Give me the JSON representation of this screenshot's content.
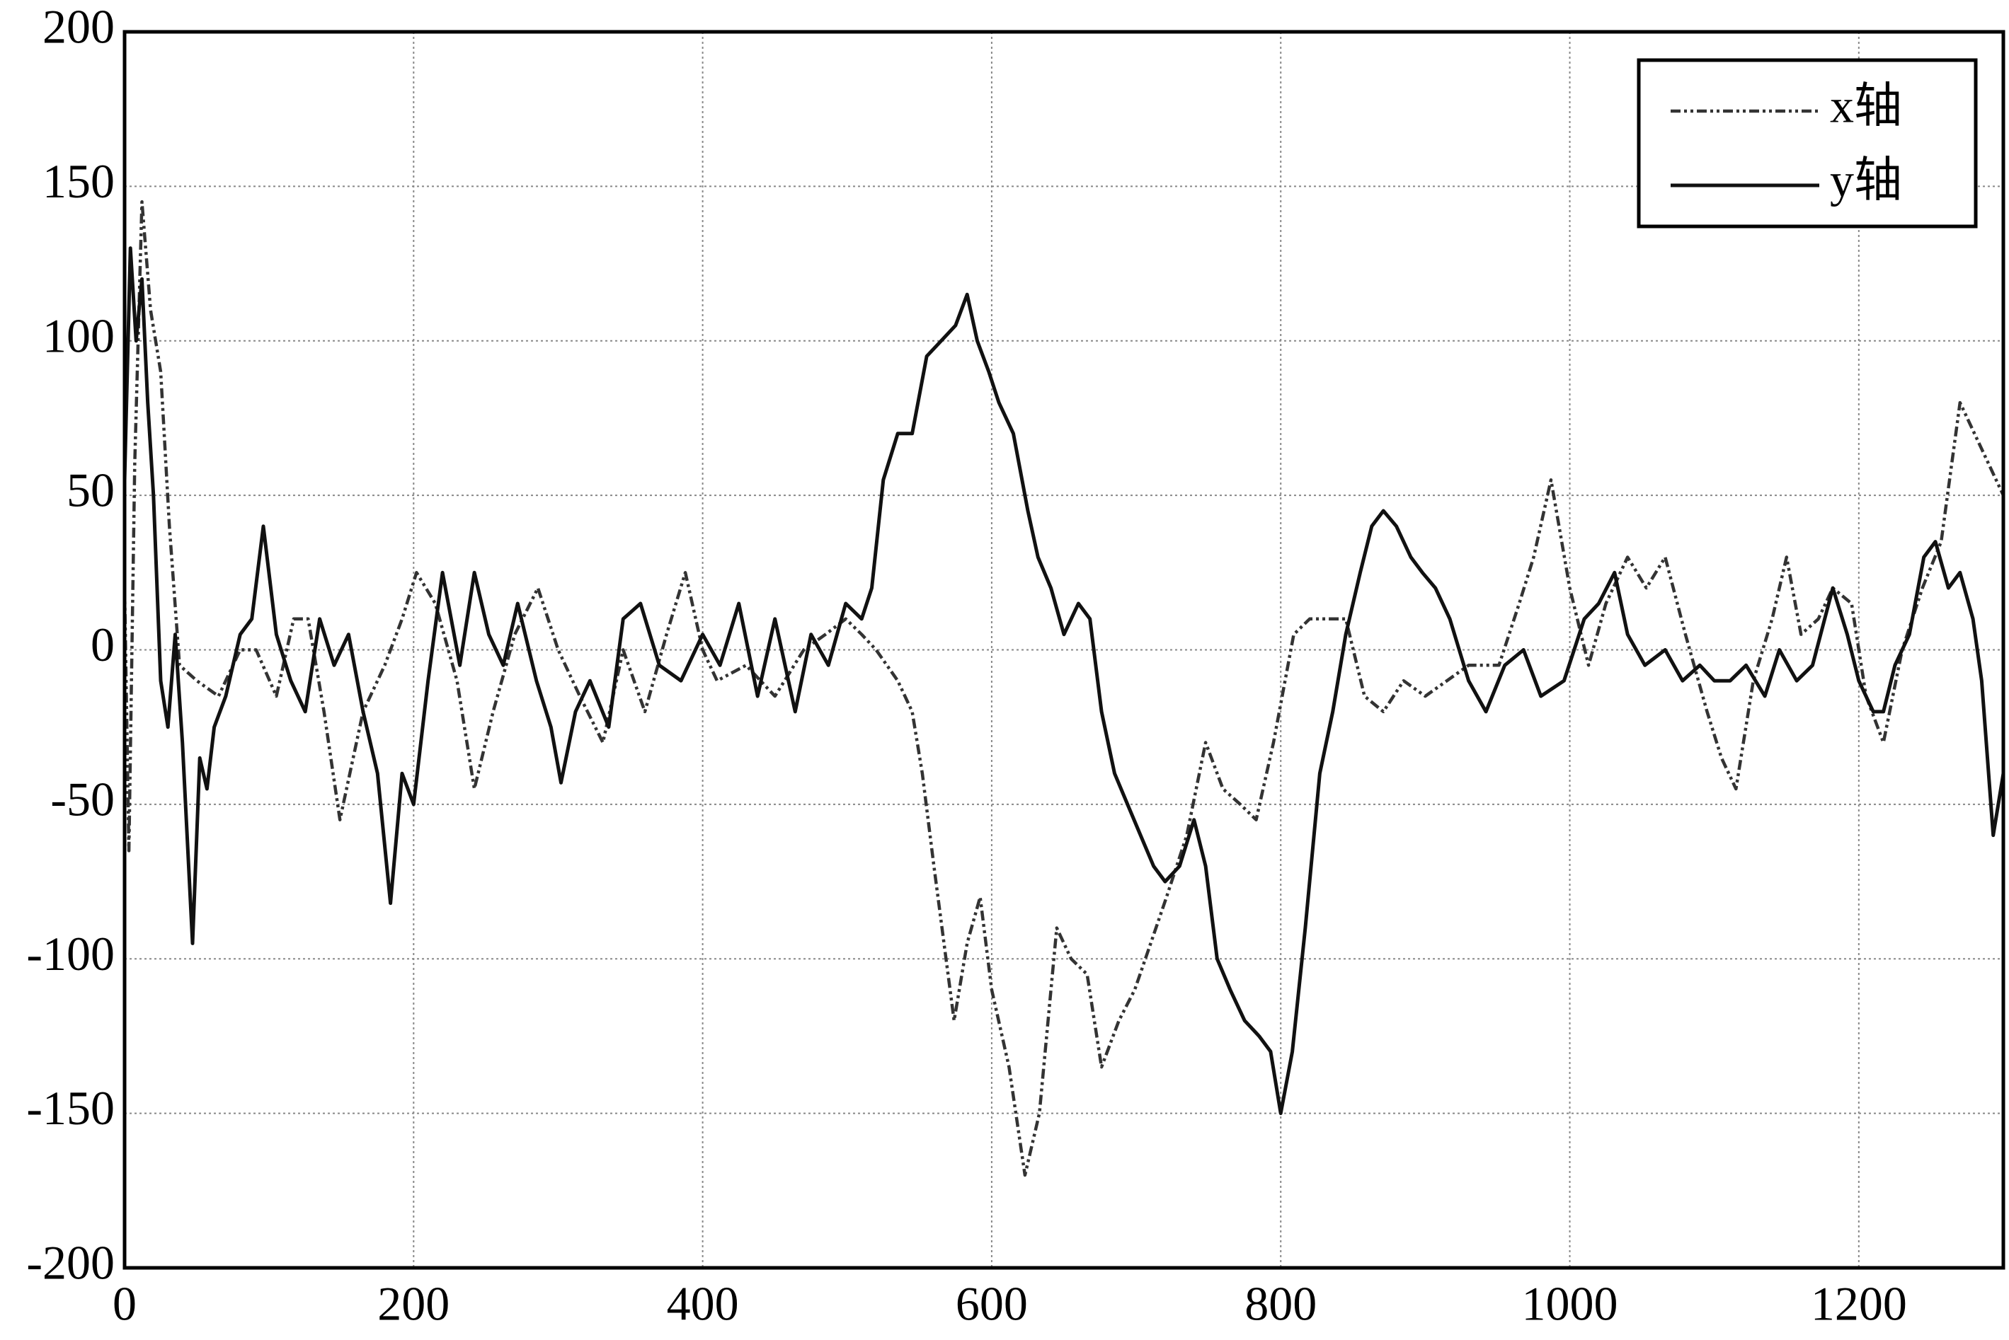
{
  "chart_data": {
    "type": "line",
    "xlim": [
      0,
      1300
    ],
    "xticks": [
      0,
      200,
      400,
      600,
      800,
      1000,
      1200
    ],
    "ylim": [
      -200,
      200
    ],
    "yticks": [
      -200,
      -150,
      -100,
      -50,
      0,
      50,
      100,
      150,
      200
    ],
    "grid": true,
    "legend": "upper right",
    "series": [
      {
        "name": "x轴",
        "color": "#333333",
        "style": "dashdot",
        "x": [
          0,
          3,
          7,
          12,
          18,
          25,
          31,
          38,
          50,
          65,
          80,
          91,
          105,
          117,
          127,
          138,
          149,
          165,
          180,
          192,
          202,
          215,
          230,
          242,
          255,
          270,
          286,
          300,
          315,
          331,
          345,
          360,
          375,
          388,
          400,
          410,
          430,
          450,
          470,
          485,
          499,
          510,
          520,
          535,
          545,
          552,
          560,
          574,
          583,
          592,
          600,
          612,
          623,
          633,
          645,
          655,
          666,
          676,
          688,
          699,
          710,
          721,
          735,
          748,
          760,
          772,
          783,
          795,
          809,
          820,
          833,
          845,
          858,
          871,
          885,
          900,
          915,
          930,
          951,
          965,
          975,
          987,
          1000,
          1013,
          1025,
          1040,
          1053,
          1066,
          1080,
          1095,
          1105,
          1115,
          1127,
          1140,
          1150,
          1160,
          1172,
          1182,
          1195,
          1205,
          1217,
          1230,
          1244,
          1257,
          1270,
          1285,
          1300
        ],
        "values": [
          20,
          -65,
          60,
          145,
          110,
          90,
          40,
          -5,
          -10,
          -15,
          0,
          0,
          -15,
          10,
          10,
          -20,
          -55,
          -20,
          -5,
          10,
          25,
          15,
          -10,
          -45,
          -20,
          5,
          20,
          0,
          -15,
          -30,
          0,
          -20,
          5,
          25,
          0,
          -10,
          -5,
          -15,
          0,
          5,
          10,
          5,
          0,
          -10,
          -20,
          -40,
          -70,
          -120,
          -95,
          -80,
          -110,
          -135,
          -170,
          -150,
          -90,
          -100,
          -105,
          -135,
          -120,
          -110,
          -95,
          -80,
          -60,
          -30,
          -45,
          -50,
          -55,
          -30,
          5,
          10,
          10,
          10,
          -15,
          -20,
          -10,
          -15,
          -10,
          -5,
          -5,
          15,
          30,
          55,
          20,
          -5,
          15,
          30,
          20,
          30,
          5,
          -20,
          -35,
          -45,
          -10,
          10,
          30,
          5,
          10,
          20,
          15,
          -15,
          -30,
          0,
          20,
          35,
          80,
          65,
          50
        ]
      },
      {
        "name": "y轴",
        "color": "#111111",
        "style": "solid",
        "x": [
          0,
          4,
          8,
          12,
          16,
          20,
          25,
          30,
          35,
          40,
          47,
          52,
          57,
          62,
          70,
          80,
          88,
          96,
          105,
          115,
          125,
          135,
          145,
          155,
          165,
          175,
          184,
          192,
          200,
          210,
          220,
          232,
          242,
          252,
          262,
          272,
          285,
          295,
          302,
          312,
          322,
          335,
          345,
          357,
          370,
          385,
          400,
          412,
          425,
          438,
          450,
          464,
          475,
          487,
          499,
          510,
          517,
          525,
          535,
          545,
          555,
          565,
          575,
          583,
          590,
          598,
          605,
          615,
          625,
          632,
          641,
          650,
          660,
          668,
          676,
          685,
          694,
          703,
          712,
          720,
          730,
          740,
          748,
          756,
          765,
          775,
          785,
          793,
          800,
          808,
          817,
          827,
          836,
          845,
          855,
          863,
          871,
          880,
          890,
          898,
          907,
          917,
          930,
          942,
          955,
          968,
          980,
          996,
          1010,
          1020,
          1031,
          1040,
          1052,
          1066,
          1078,
          1090,
          1100,
          1111,
          1122,
          1135,
          1145,
          1157,
          1168,
          1182,
          1192,
          1200,
          1210,
          1217,
          1225,
          1235,
          1245,
          1253,
          1262,
          1270,
          1279,
          1285,
          1293,
          1300
        ],
        "values": [
          55,
          130,
          100,
          120,
          80,
          50,
          -10,
          -25,
          5,
          -30,
          -95,
          -35,
          -45,
          -25,
          -15,
          5,
          10,
          40,
          5,
          -10,
          -20,
          10,
          -5,
          5,
          -20,
          -40,
          -82,
          -40,
          -50,
          -10,
          25,
          -5,
          25,
          5,
          -5,
          15,
          -10,
          -25,
          -43,
          -20,
          -10,
          -25,
          10,
          15,
          -5,
          -10,
          5,
          -5,
          15,
          -15,
          10,
          -20,
          5,
          -5,
          15,
          10,
          20,
          55,
          70,
          70,
          95,
          100,
          105,
          115,
          100,
          90,
          80,
          70,
          45,
          30,
          20,
          5,
          15,
          10,
          -20,
          -40,
          -50,
          -60,
          -70,
          -75,
          -70,
          -55,
          -70,
          -100,
          -110,
          -120,
          -125,
          -130,
          -150,
          -130,
          -90,
          -40,
          -20,
          5,
          25,
          40,
          45,
          40,
          30,
          25,
          20,
          10,
          -10,
          -20,
          -5,
          0,
          -15,
          -10,
          10,
          15,
          25,
          5,
          -5,
          0,
          -10,
          -5,
          -10,
          -10,
          -5,
          -15,
          0,
          -10,
          -5,
          20,
          5,
          -10,
          -20,
          -20,
          -5,
          5,
          30,
          35,
          20,
          25,
          10,
          -10,
          -60,
          -40
        ]
      }
    ]
  }
}
